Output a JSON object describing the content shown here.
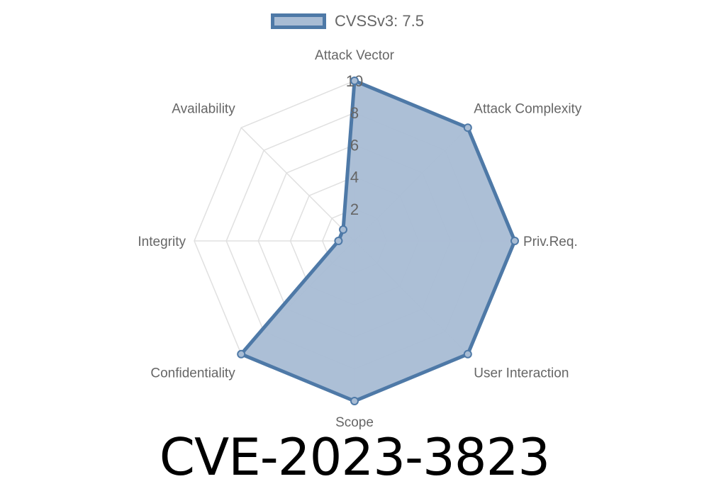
{
  "chart_data": {
    "type": "radar",
    "title": "CVE-2023-3823",
    "legend": {
      "position": "top",
      "entries": [
        "CVSSv3: 7.5"
      ]
    },
    "axes": [
      "Attack Vector",
      "Attack Complexity",
      "Priv.Req.",
      "User Interaction",
      "Scope",
      "Confidentiality",
      "Integrity",
      "Availability"
    ],
    "series": [
      {
        "name": "CVSSv3: 7.5",
        "values": [
          10,
          10,
          10,
          10,
          10,
          10,
          1,
          1
        ]
      }
    ],
    "range": [
      0,
      10
    ],
    "ticks": [
      "2",
      "4",
      "6",
      "8",
      "10"
    ],
    "grid": true,
    "colors": {
      "line": "#4e79a7",
      "fill": "#a8bcd4",
      "grid": "#e0e0e0",
      "label": "#666666"
    }
  }
}
